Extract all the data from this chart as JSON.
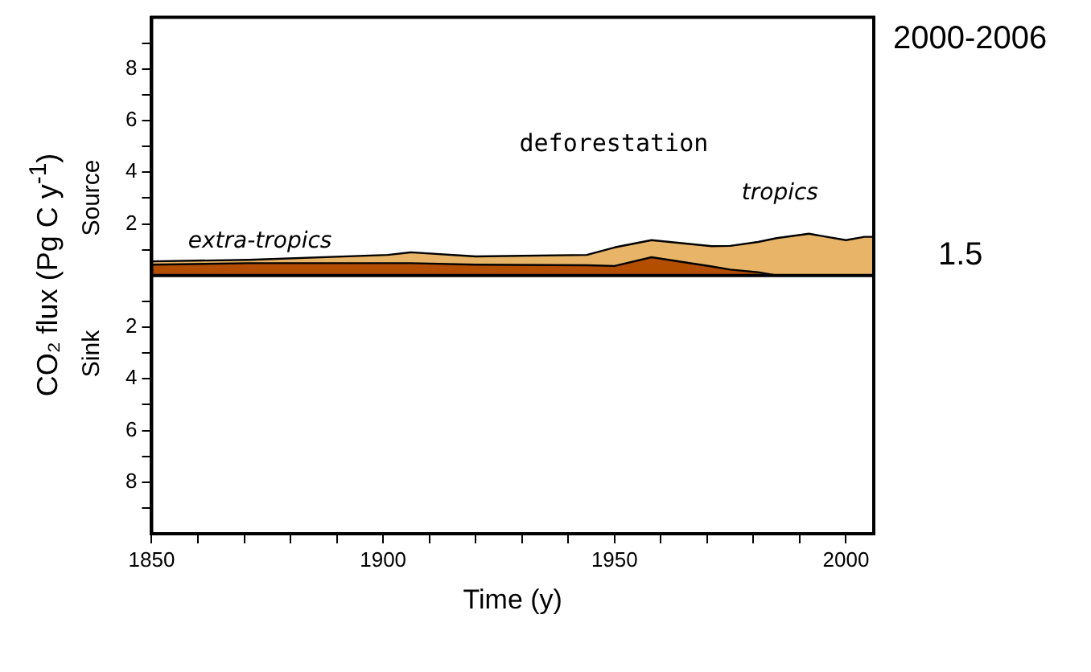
{
  "chart_data": {
    "type": "area",
    "stacked": true,
    "x": [
      1850,
      1871,
      1901,
      1906,
      1920,
      1944,
      1950,
      1958,
      1971,
      1975,
      1981,
      1985,
      1992,
      2000,
      2004,
      2006
    ],
    "series": [
      {
        "name": "extra-tropics",
        "color": "#b34d00",
        "values": [
          0.42,
          0.48,
          0.48,
          0.48,
          0.42,
          0.4,
          0.37,
          0.71,
          0.35,
          0.23,
          0.13,
          0,
          0,
          0,
          0,
          0
        ]
      },
      {
        "name": "tropics",
        "color": "#e8b468",
        "values": [
          0.13,
          0.13,
          0.32,
          0.42,
          0.32,
          0.4,
          0.72,
          0.66,
          0.79,
          0.92,
          1.17,
          1.45,
          1.62,
          1.37,
          1.5,
          1.5
        ]
      }
    ],
    "xlim": [
      1850,
      2006
    ],
    "xticks": [
      1850,
      {
        "value": 1860,
        "label": null
      },
      {
        "value": 1870,
        "label": null
      },
      {
        "value": 1880,
        "label": null
      },
      {
        "value": 1890,
        "label": null
      },
      1900,
      {
        "value": 1910,
        "label": null
      },
      {
        "value": 1920,
        "label": null
      },
      {
        "value": 1930,
        "label": null
      },
      {
        "value": 1940,
        "label": null
      },
      1950,
      {
        "value": 1960,
        "label": null
      },
      {
        "value": 1970,
        "label": null
      },
      {
        "value": 1980,
        "label": null
      },
      {
        "value": 1990,
        "label": null
      },
      2000
    ],
    "ylim": [
      -10,
      10
    ],
    "yticks": [
      {
        "value": -9,
        "label": null
      },
      {
        "value": -8,
        "label": "8"
      },
      {
        "value": -7,
        "label": null
      },
      {
        "value": -6,
        "label": "6"
      },
      {
        "value": -5,
        "label": null
      },
      {
        "value": -4,
        "label": "4"
      },
      {
        "value": -3,
        "label": null
      },
      {
        "value": -2,
        "label": "2"
      },
      {
        "value": -1,
        "label": null
      },
      {
        "value": 1,
        "label": null
      },
      {
        "value": 2,
        "label": "2"
      },
      {
        "value": 3,
        "label": null
      },
      {
        "value": 4,
        "label": "4"
      },
      {
        "value": 5,
        "label": null
      },
      {
        "value": 6,
        "label": "6"
      },
      {
        "value": 7,
        "label": null
      },
      {
        "value": 8,
        "label": "8"
      },
      {
        "value": 9,
        "label": null
      }
    ],
    "xlabel": "Time (y)",
    "ylabel": "CO₂ flux (Pg C y$^{-1}$)",
    "ref_lines": [
      {
        "axis": "y",
        "value": 0,
        "color": "#000000"
      }
    ],
    "annotations": [
      "Source",
      "Sink",
      "deforestation",
      "2000-2006",
      "1.5"
    ]
  }
}
